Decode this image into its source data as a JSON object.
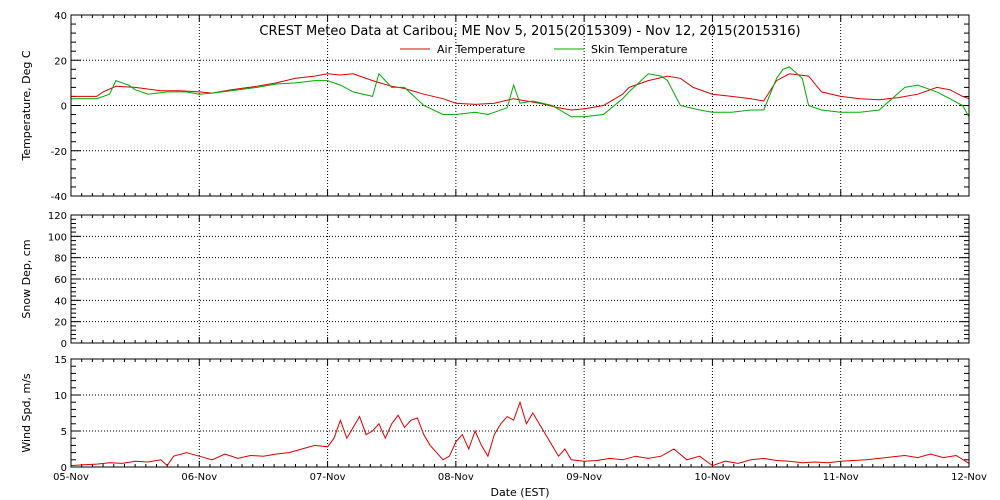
{
  "chart_data": [
    {
      "type": "line",
      "title": "CREST Meteo Data at Caribou, ME   Nov  5, 2015(2015309) - Nov 12, 2015(2015316)",
      "ylabel": "Temperature, Deg C",
      "ylim": [
        -40,
        40
      ],
      "yticks": [
        -40,
        -20,
        0,
        20,
        40
      ],
      "xlim": [
        0,
        7
      ],
      "grid": true,
      "legend_position": "top-center",
      "series": [
        {
          "name": "Air Temperature",
          "color": "#dd0000",
          "x": [
            0.0,
            0.1,
            0.2,
            0.25,
            0.35,
            0.5,
            0.7,
            0.85,
            1.0,
            1.1,
            1.25,
            1.45,
            1.6,
            1.75,
            1.9,
            2.0,
            2.1,
            2.2,
            2.35,
            2.5,
            2.6,
            2.75,
            2.9,
            3.0,
            3.15,
            3.3,
            3.45,
            3.55,
            3.65,
            3.8,
            3.9,
            4.0,
            4.15,
            4.3,
            4.35,
            4.5,
            4.65,
            4.75,
            4.85,
            5.0,
            5.15,
            5.3,
            5.4,
            5.5,
            5.6,
            5.75,
            5.85,
            6.0,
            6.15,
            6.3,
            6.45,
            6.6,
            6.75,
            6.85,
            6.95,
            7.0
          ],
          "values": [
            4,
            4,
            4,
            6,
            8.5,
            8,
            6.5,
            6.5,
            6,
            5.5,
            7,
            8.5,
            10,
            12,
            13,
            14,
            13.5,
            14,
            11,
            8.5,
            7.5,
            5,
            3,
            1,
            0.5,
            1,
            3,
            2,
            1,
            -1,
            -2,
            -1.5,
            0,
            5,
            8,
            11,
            13,
            12,
            8,
            5,
            4,
            3,
            2,
            11,
            14,
            13,
            6,
            4,
            3,
            2.5,
            3.5,
            5,
            8,
            7,
            4,
            3
          ]
        },
        {
          "name": "Skin Temperature",
          "color": "#00aa00",
          "x": [
            0.0,
            0.1,
            0.2,
            0.3,
            0.35,
            0.45,
            0.5,
            0.6,
            0.75,
            0.9,
            1.0,
            1.1,
            1.25,
            1.45,
            1.6,
            1.75,
            1.9,
            2.0,
            2.1,
            2.2,
            2.35,
            2.4,
            2.5,
            2.6,
            2.75,
            2.9,
            3.0,
            3.15,
            3.25,
            3.4,
            3.45,
            3.5,
            3.6,
            3.75,
            3.9,
            4.0,
            4.15,
            4.3,
            4.35,
            4.5,
            4.6,
            4.65,
            4.75,
            4.9,
            5.0,
            5.15,
            5.3,
            5.4,
            5.5,
            5.55,
            5.6,
            5.7,
            5.75,
            5.85,
            6.0,
            6.15,
            6.3,
            6.4,
            6.5,
            6.6,
            6.75,
            6.85,
            6.95,
            7.0
          ],
          "values": [
            3,
            3,
            3,
            5,
            11,
            9,
            7,
            5,
            6,
            6,
            5,
            5.5,
            6.5,
            8,
            9.5,
            10,
            11,
            11,
            9,
            6,
            4,
            14,
            8,
            8,
            0,
            -4,
            -4,
            -3,
            -4,
            -1,
            9,
            1,
            2,
            0,
            -5,
            -5,
            -4,
            3,
            6,
            14,
            13,
            11,
            0,
            -2,
            -3,
            -3,
            -2,
            -2,
            12,
            16,
            17,
            12,
            0,
            -2,
            -3,
            -3,
            -2,
            3,
            8,
            9,
            6,
            3,
            0,
            -5
          ]
        }
      ]
    },
    {
      "type": "line",
      "ylabel": "Snow Dep, cm",
      "ylim": [
        0,
        120
      ],
      "yticks": [
        0,
        20,
        40,
        60,
        80,
        100,
        120
      ],
      "xlim": [
        0,
        7
      ],
      "grid": true,
      "series": []
    },
    {
      "type": "line",
      "ylabel": "Wind Spd, m/s",
      "xlabel": "Date (EST)",
      "ylim": [
        0,
        15
      ],
      "yticks": [
        0,
        5,
        10,
        15
      ],
      "xlim": [
        0,
        7
      ],
      "grid": true,
      "categories": [
        "05-Nov",
        "06-Nov",
        "07-Nov",
        "08-Nov",
        "09-Nov",
        "10-Nov",
        "11-Nov",
        "12-Nov"
      ],
      "series": [
        {
          "color": "#dd0000",
          "x": [
            0.0,
            0.1,
            0.2,
            0.3,
            0.4,
            0.5,
            0.6,
            0.7,
            0.75,
            0.8,
            0.9,
            1.0,
            1.1,
            1.2,
            1.3,
            1.4,
            1.5,
            1.6,
            1.7,
            1.8,
            1.9,
            2.0,
            2.05,
            2.1,
            2.15,
            2.2,
            2.25,
            2.3,
            2.35,
            2.4,
            2.45,
            2.5,
            2.55,
            2.6,
            2.65,
            2.7,
            2.75,
            2.8,
            2.85,
            2.9,
            2.95,
            3.0,
            3.05,
            3.1,
            3.15,
            3.2,
            3.25,
            3.3,
            3.35,
            3.4,
            3.45,
            3.5,
            3.55,
            3.6,
            3.65,
            3.7,
            3.75,
            3.8,
            3.85,
            3.9,
            4.0,
            4.1,
            4.2,
            4.3,
            4.4,
            4.5,
            4.6,
            4.7,
            4.8,
            4.9,
            5.0,
            5.1,
            5.2,
            5.3,
            5.4,
            5.5,
            5.6,
            5.7,
            5.8,
            5.9,
            6.0,
            6.1,
            6.2,
            6.3,
            6.4,
            6.5,
            6.6,
            6.7,
            6.8,
            6.9,
            7.0
          ],
          "values": [
            0.2,
            0.3,
            0.4,
            0.6,
            0.5,
            0.8,
            0.7,
            1.0,
            0.2,
            1.5,
            2.0,
            1.5,
            1.0,
            1.8,
            1.2,
            1.6,
            1.5,
            1.8,
            2.0,
            2.5,
            3.0,
            2.8,
            4.0,
            6.5,
            4.0,
            5.5,
            7.0,
            4.5,
            5.0,
            6.0,
            4.0,
            6.0,
            7.2,
            5.5,
            6.5,
            6.8,
            4.5,
            3.0,
            2.0,
            1.0,
            1.5,
            3.5,
            4.5,
            2.5,
            5.0,
            3.0,
            1.5,
            4.5,
            6.0,
            7.0,
            6.5,
            9.0,
            6.0,
            7.5,
            6.0,
            4.5,
            3.0,
            1.5,
            2.5,
            1.0,
            0.8,
            0.9,
            1.2,
            1.0,
            1.5,
            1.2,
            1.5,
            2.5,
            1.0,
            1.5,
            0.2,
            0.8,
            0.5,
            1.0,
            1.2,
            0.9,
            0.8,
            0.6,
            0.7,
            0.6,
            0.8,
            0.9,
            1.0,
            1.2,
            1.4,
            1.6,
            1.3,
            1.8,
            1.3,
            1.6,
            0.5
          ]
        }
      ]
    }
  ]
}
